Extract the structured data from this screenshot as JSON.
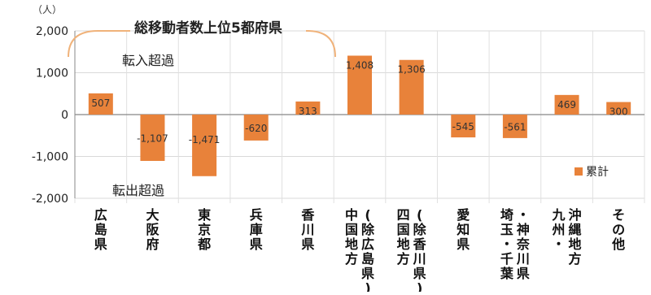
{
  "title": "",
  "chart_data": {
    "type": "bar",
    "unit_label": "（人）",
    "ylim": [
      -2000,
      2000
    ],
    "yticks": [
      2000,
      1000,
      0,
      -1000,
      -2000
    ],
    "ytick_labels": [
      "2,000",
      "1,000",
      "0",
      "-1,000",
      "-2,000"
    ],
    "grid": true,
    "legend_position": "right",
    "categories": [
      "広島県",
      "大阪府",
      "東京都",
      "兵庫県",
      "香川県",
      "中国地方（除広島県）",
      "四国地方（除香川県）",
      "愛知県",
      "埼玉・千葉・神奈川県",
      "九州・沖縄地方",
      "その他"
    ],
    "category_columns": [
      [
        "広島県"
      ],
      [
        "大阪府"
      ],
      [
        "東京都"
      ],
      [
        "兵庫県"
      ],
      [
        "香川県"
      ],
      [
        "中国地方",
        "(除広島県)"
      ],
      [
        "四国地方",
        "(除香川県)"
      ],
      [
        "愛知県"
      ],
      [
        "埼玉・千葉",
        "・神奈川県"
      ],
      [
        "九州・",
        "沖縄地方"
      ],
      [
        "その他"
      ]
    ],
    "series": [
      {
        "name": "累計",
        "color": "#e8823a",
        "values": [
          507,
          -1107,
          -1471,
          -620,
          313,
          1408,
          1306,
          -545,
          -561,
          469,
          300
        ],
        "value_labels": [
          "507",
          "-1,107",
          "-1,471",
          "-620",
          "313",
          "1,408",
          "1,306",
          "-545",
          "-561",
          "469",
          "300"
        ]
      }
    ],
    "annotations": {
      "top5": "総移動者数上位5都府県",
      "inflow": "転入超過",
      "outflow": "転出超過"
    }
  }
}
